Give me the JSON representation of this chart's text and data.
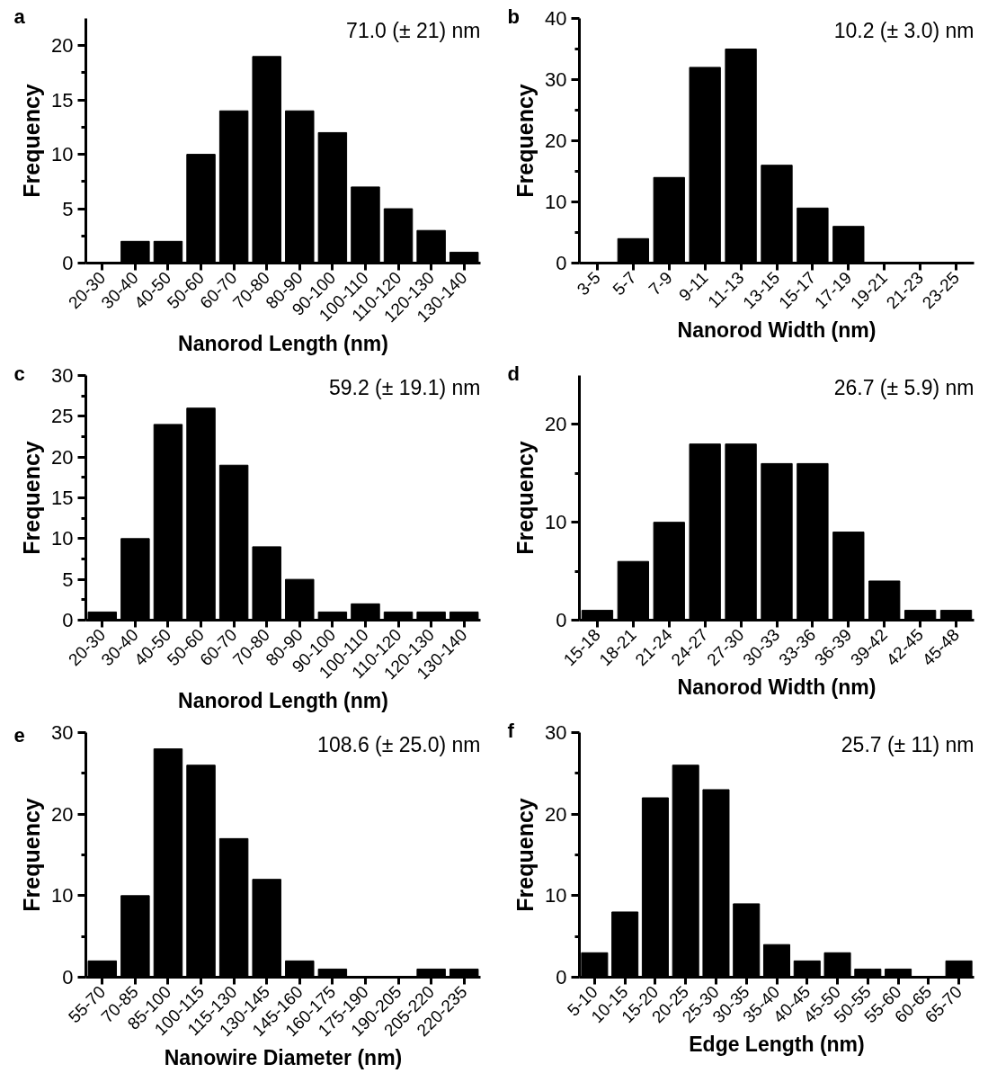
{
  "chart_data": [
    {
      "type": "bar",
      "title": "a",
      "xlabel": "Nanorod Length (nm)",
      "ylabel": "Frequency",
      "annotations": [
        "71.0 (± 21) nm"
      ],
      "categories": [
        "20-30",
        "30-40",
        "40-50",
        "50-60",
        "60-70",
        "70-80",
        "80-90",
        "90-100",
        "100-110",
        "110-120",
        "120-130",
        "130-140"
      ],
      "values": [
        0,
        2,
        2,
        10,
        14,
        19,
        14,
        12,
        7,
        5,
        3,
        1
      ],
      "color": "#000000",
      "ylim": [
        0,
        22.5
      ],
      "yticks": [
        0,
        5,
        10,
        15,
        20
      ],
      "grid": false
    },
    {
      "type": "bar",
      "title": "b",
      "xlabel": "Nanorod Width (nm)",
      "ylabel": "Frequency",
      "annotations": [
        "10.2 (± 3.0) nm"
      ],
      "categories": [
        "3-5",
        "5-7",
        "7-9",
        "9-11",
        "11-13",
        "13-15",
        "15-17",
        "17-19",
        "19-21",
        "21-23",
        "23-25"
      ],
      "values": [
        0,
        4,
        14,
        32,
        35,
        16,
        9,
        6,
        0,
        0,
        0
      ],
      "color": "#000000",
      "ylim": [
        0,
        40
      ],
      "yticks": [
        0,
        10,
        20,
        30,
        40
      ],
      "grid": false
    },
    {
      "type": "bar",
      "title": "c",
      "xlabel": "Nanorod Length (nm)",
      "ylabel": "Frequency",
      "annotations": [
        "59.2 (± 19.1) nm"
      ],
      "categories": [
        "20-30",
        "30-40",
        "40-50",
        "50-60",
        "60-70",
        "70-80",
        "80-90",
        "90-100",
        "100-110",
        "110-120",
        "120-130",
        "130-140"
      ],
      "values": [
        1,
        10,
        24,
        26,
        19,
        9,
        5,
        1,
        2,
        1,
        1,
        1
      ],
      "color": "#000000",
      "ylim": [
        0,
        30
      ],
      "yticks": [
        0,
        5,
        10,
        15,
        20,
        25,
        30
      ],
      "grid": false
    },
    {
      "type": "bar",
      "title": "d",
      "xlabel": "Nanorod Width (nm)",
      "ylabel": "Frequency",
      "annotations": [
        "26.7 (± 5.9) nm"
      ],
      "categories": [
        "15-18",
        "18-21",
        "21-24",
        "24-27",
        "27-30",
        "30-33",
        "33-36",
        "36-39",
        "39-42",
        "42-45",
        "45-48"
      ],
      "values": [
        1,
        6,
        10,
        18,
        18,
        16,
        16,
        9,
        4,
        1,
        1
      ],
      "color": "#000000",
      "ylim": [
        0,
        25
      ],
      "yticks": [
        0,
        10,
        20
      ],
      "grid": false
    },
    {
      "type": "bar",
      "title": "e",
      "xlabel": "Nanowire Diameter (nm)",
      "ylabel": "Frequency",
      "annotations": [
        "108.6 (± 25.0) nm"
      ],
      "categories": [
        "55-70",
        "70-85",
        "85-100",
        "100-115",
        "115-130",
        "130-145",
        "145-160",
        "160-175",
        "175-190",
        "190-205",
        "205-220",
        "220-235"
      ],
      "values": [
        2,
        10,
        28,
        26,
        17,
        12,
        2,
        1,
        0,
        0,
        1,
        1
      ],
      "color": "#000000",
      "ylim": [
        0,
        30
      ],
      "yticks": [
        0,
        10,
        20,
        30
      ],
      "grid": false
    },
    {
      "type": "bar",
      "title": "f",
      "xlabel": "Edge Length (nm)",
      "ylabel": "Frequency",
      "annotations": [
        "25.7 (± 11) nm"
      ],
      "categories": [
        "5-10",
        "10-15",
        "15-20",
        "20-25",
        "25-30",
        "30-35",
        "35-40",
        "40-45",
        "45-50",
        "50-55",
        "55-60",
        "60-65",
        "65-70"
      ],
      "values": [
        3,
        8,
        22,
        26,
        23,
        9,
        4,
        2,
        3,
        1,
        1,
        0,
        2
      ],
      "color": "#000000",
      "ylim": [
        0,
        30
      ],
      "yticks": [
        0,
        10,
        20,
        30
      ],
      "grid": false
    }
  ]
}
